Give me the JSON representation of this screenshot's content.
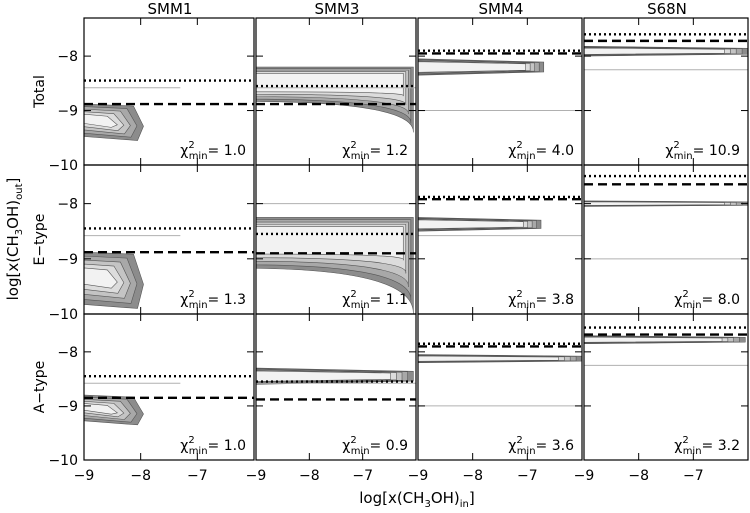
{
  "chart_data": {
    "type": "contour-grid",
    "columns": [
      "SMM1",
      "SMM3",
      "SMM4",
      "S68N"
    ],
    "rows": [
      "Total",
      "E−type",
      "A−type"
    ],
    "xlabel": {
      "base": "log[x(CH",
      "sub1": "3",
      "mid": "OH)",
      "sub2": "in",
      "end": "]"
    },
    "ylabel": {
      "base": "log[x(CH",
      "sub1": "3",
      "mid": "OH)",
      "sub2": "out",
      "end": "]"
    },
    "xlim": [
      -9,
      -6.0
    ],
    "ylim": [
      -10,
      -7.3
    ],
    "xticks": [
      -9,
      -8,
      -7
    ],
    "yticks": [
      -10,
      -9,
      -8
    ],
    "xtick_labels": [
      "−9",
      "−8",
      "−7"
    ],
    "ytick_labels": [
      "−10",
      "−9",
      "−8"
    ],
    "chi_label": {
      "symbol": "χ",
      "sup": "2",
      "sub": "min"
    },
    "panels": [
      {
        "row": 0,
        "col": 0,
        "chi2": "1.0",
        "dotted": -8.45,
        "dashed": -8.88,
        "grey": -8.58,
        "grey_x_end": -7.3,
        "contours": [
          {
            "y_top": -8.88,
            "y_bot": -9.55,
            "x_end": -7.95,
            "shape": "wedge"
          }
        ]
      },
      {
        "row": 0,
        "col": 1,
        "chi2": "1.2",
        "dotted": -8.55,
        "dashed": -8.88,
        "grey": -8.58,
        "grey_x_end": -6.0,
        "contours": [
          {
            "y_top": -8.2,
            "y_bot": -9.4,
            "x_end": -6.05,
            "shape": "band-droop"
          }
        ]
      },
      {
        "row": 0,
        "col": 2,
        "chi2": "4.0",
        "dotted": -7.9,
        "dashed": -7.95,
        "grey": -9.0,
        "grey_x_end": -6.0,
        "contours": [
          {
            "y_top": -8.05,
            "y_bot": -8.35,
            "x_end": -6.7,
            "shape": "band"
          }
        ]
      },
      {
        "row": 0,
        "col": 3,
        "chi2": "10.9",
        "dotted": -7.6,
        "dashed": -7.72,
        "grey": -8.25,
        "grey_x_end": -6.0,
        "contours": [
          {
            "y_top": -7.82,
            "y_bot": -8.0,
            "x_end": -6.0,
            "shape": "band"
          }
        ]
      },
      {
        "row": 1,
        "col": 0,
        "chi2": "1.3",
        "dotted": -8.45,
        "dashed": -8.88,
        "grey": -8.58,
        "grey_x_end": -7.3,
        "contours": [
          {
            "y_top": -8.88,
            "y_bot": -9.9,
            "x_end": -7.95,
            "shape": "wedge"
          }
        ]
      },
      {
        "row": 1,
        "col": 1,
        "chi2": "1.1",
        "dotted": -8.55,
        "dashed": -8.9,
        "grey": -8.0,
        "grey_x_end": -6.0,
        "contours": [
          {
            "y_top": -8.25,
            "y_bot": -10.0,
            "x_end": -6.05,
            "shape": "band-droop"
          }
        ]
      },
      {
        "row": 1,
        "col": 2,
        "chi2": "3.8",
        "dotted": -7.88,
        "dashed": -7.92,
        "grey": -8.58,
        "grey_x_end": -6.0,
        "contours": [
          {
            "y_top": -8.25,
            "y_bot": -8.5,
            "x_end": -6.75,
            "shape": "band"
          }
        ]
      },
      {
        "row": 1,
        "col": 3,
        "chi2": "8.0",
        "dotted": -7.5,
        "dashed": -7.65,
        "grey": -9.0,
        "grey_x_end": -6.0,
        "contours": [
          {
            "y_top": -7.95,
            "y_bot": -8.05,
            "x_end": -6.0,
            "shape": "band"
          }
        ]
      },
      {
        "row": 2,
        "col": 0,
        "chi2": "1.0",
        "dotted": -8.45,
        "dashed": -8.85,
        "grey": -8.58,
        "grey_x_end": -7.3,
        "contours": [
          {
            "y_top": -8.8,
            "y_bot": -9.35,
            "x_end": -7.95,
            "shape": "wedge"
          }
        ]
      },
      {
        "row": 2,
        "col": 1,
        "chi2": "0.9",
        "dotted": -8.55,
        "dashed": -8.88,
        "grey": -8.58,
        "grey_x_end": -6.0,
        "contours": [
          {
            "y_top": -8.3,
            "y_bot": -8.6,
            "x_end": -6.05,
            "shape": "band"
          }
        ]
      },
      {
        "row": 2,
        "col": 2,
        "chi2": "3.6",
        "dotted": -7.85,
        "dashed": -7.9,
        "grey": -9.0,
        "grey_x_end": -6.0,
        "contours": [
          {
            "y_top": -8.05,
            "y_bot": -8.2,
            "x_end": -6.0,
            "shape": "band"
          }
        ]
      },
      {
        "row": 2,
        "col": 3,
        "chi2": "3.2",
        "dotted": -7.55,
        "dashed": -7.68,
        "grey": -8.25,
        "grey_x_end": -6.0,
        "contours": [
          {
            "y_top": -7.7,
            "y_bot": -7.85,
            "x_end": -6.05,
            "shape": "band"
          }
        ]
      }
    ]
  }
}
